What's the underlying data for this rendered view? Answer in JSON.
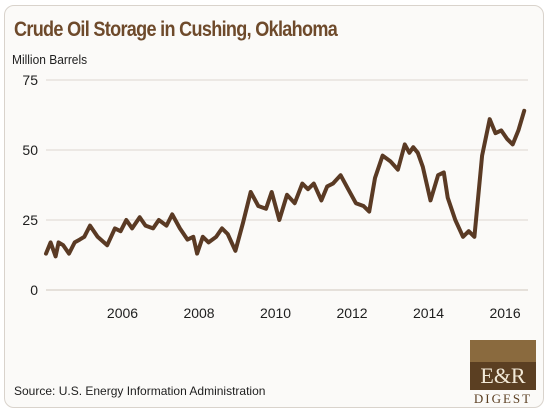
{
  "chart_data": {
    "type": "line",
    "title": "Crude Oil Storage in Cushing, Oklahoma",
    "ylabel": "Million Barrels",
    "xlabel": "",
    "ylim": [
      0,
      75
    ],
    "yticks": [
      0,
      25,
      50,
      75
    ],
    "xlim": [
      2004.0,
      2016.6
    ],
    "xticks": [
      2006,
      2008,
      2010,
      2012,
      2014,
      2016
    ],
    "grid": "horizontal",
    "legend": "none",
    "color": "#5a3a24",
    "series": [
      {
        "x": [
          2004.0,
          2004.12,
          2004.25,
          2004.33,
          2004.45,
          2004.6,
          2004.75,
          2004.88,
          2005.0,
          2005.15,
          2005.35,
          2005.6,
          2005.8,
          2005.95,
          2006.1,
          2006.25,
          2006.45,
          2006.6,
          2006.8,
          2006.95,
          2007.15,
          2007.3,
          2007.5,
          2007.7,
          2007.85,
          2007.95,
          2008.1,
          2008.25,
          2008.45,
          2008.6,
          2008.75,
          2008.95,
          2009.15,
          2009.35,
          2009.55,
          2009.75,
          2009.9,
          2010.1,
          2010.3,
          2010.5,
          2010.7,
          2010.85,
          2011.0,
          2011.2,
          2011.35,
          2011.5,
          2011.7,
          2011.9,
          2012.1,
          2012.3,
          2012.45,
          2012.6,
          2012.8,
          2013.0,
          2013.2,
          2013.38,
          2013.5,
          2013.6,
          2013.72,
          2013.85,
          2014.05,
          2014.25,
          2014.4,
          2014.5,
          2014.7,
          2014.9,
          2015.05,
          2015.2,
          2015.4,
          2015.6,
          2015.75,
          2015.9,
          2016.05,
          2016.2,
          2016.35,
          2016.5
        ],
        "y": [
          13,
          17,
          12,
          17,
          16,
          13,
          17,
          18,
          19,
          23,
          19,
          16,
          22,
          21,
          25,
          22,
          26,
          23,
          22,
          25,
          23,
          27,
          22,
          18,
          19,
          13,
          19,
          17,
          19,
          22,
          20,
          14,
          24,
          35,
          30,
          29,
          35,
          25,
          34,
          31,
          38,
          36,
          38,
          32,
          37,
          38,
          41,
          36,
          31,
          30,
          28,
          40,
          48,
          46,
          43,
          52,
          49,
          51,
          49,
          44,
          32,
          41,
          42,
          33,
          25,
          19,
          21,
          19,
          48,
          61,
          56,
          57,
          54,
          52,
          57,
          64
        ]
      }
    ]
  },
  "source": "Source: U.S. Energy Information Administration",
  "logo": {
    "text_main": "E&R",
    "text_sub": "DIGEST"
  }
}
